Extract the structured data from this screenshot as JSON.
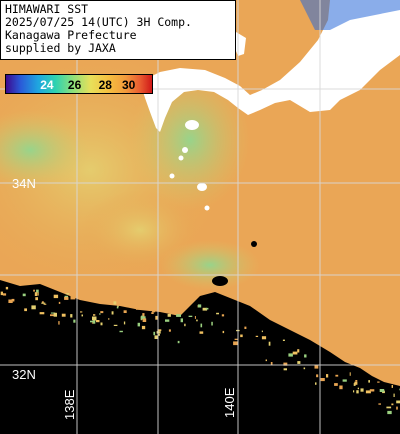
{
  "header": {
    "line1": "HIMAWARI SST",
    "line2": "2025/07/25 14(UTC) 3H Comp.",
    "line3": "Kanagawa Prefecture",
    "line4": "supplied by JAXA"
  },
  "colorbar": {
    "ticks": [
      "24",
      "26",
      "28",
      "30"
    ],
    "tick_colors": [
      "#ffffff",
      "#000000",
      "#000000",
      "#000000"
    ]
  },
  "grid": {
    "lat_labels": [
      "34N",
      "32N"
    ],
    "lon_labels": [
      "138E",
      "140E"
    ]
  },
  "colors": {
    "warm": "#e8a552",
    "cool": "#d8c060",
    "green": "#9ad080",
    "land": "#ffffff",
    "nodata": "#000000",
    "grid": "#cfcfcf"
  }
}
